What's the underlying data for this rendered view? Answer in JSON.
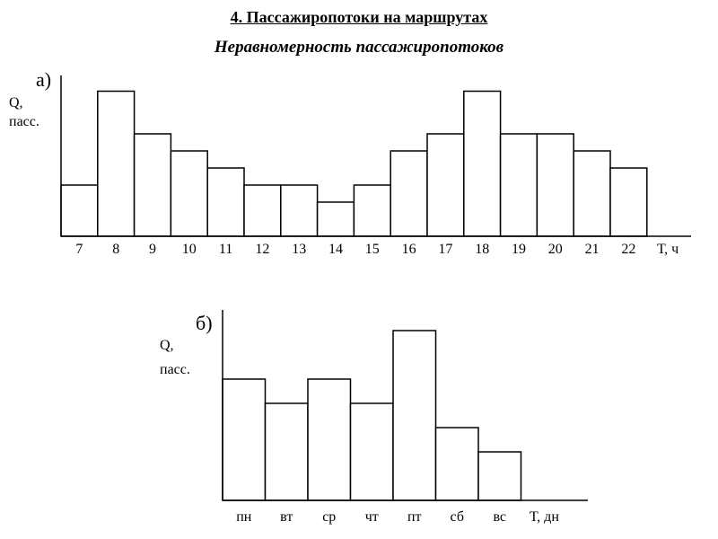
{
  "header": {
    "title": "4. Пассажиропотоки на маршрутах",
    "subtitle": "Неравномерность пассажиропотоков"
  },
  "chart_data": [
    {
      "type": "bar",
      "panel_label": "а)",
      "ylabel_line1": "Q,",
      "ylabel_line2": "пасс.",
      "xlabel": "Т, ч",
      "categories": [
        "7",
        "8",
        "9",
        "10",
        "11",
        "12",
        "13",
        "14",
        "15",
        "16",
        "17",
        "18",
        "19",
        "20",
        "21",
        "22"
      ],
      "values": [
        3,
        8.5,
        6,
        5,
        4,
        3,
        3,
        2,
        3,
        5,
        6,
        8.5,
        6,
        6,
        5,
        4
      ],
      "ylim": [
        0,
        9
      ],
      "grid": false
    },
    {
      "type": "bar",
      "panel_label": "б)",
      "ylabel_line1": "Q,",
      "ylabel_line2": "пасс.",
      "xlabel": "Т, дн",
      "categories": [
        "пн",
        "вт",
        "ср",
        "чт",
        "пт",
        "сб",
        "вс"
      ],
      "values": [
        5,
        4,
        5,
        4,
        7,
        3,
        2
      ],
      "ylim": [
        0,
        7.5
      ],
      "grid": false
    }
  ]
}
